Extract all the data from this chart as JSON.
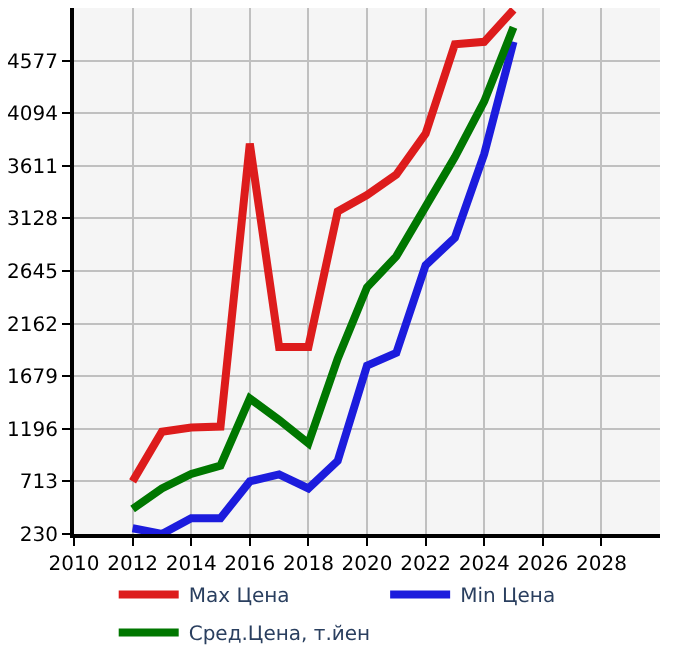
{
  "chart_data": {
    "type": "line",
    "x": [
      2012,
      2013,
      2014,
      2015,
      2016,
      2017,
      2018,
      2019,
      2020,
      2021,
      2022,
      2023,
      2024,
      2025
    ],
    "series": [
      {
        "name": "Max Цена",
        "color": "#dd1c1c",
        "values": [
          713,
          1169,
          1207,
          1217,
          3815,
          1948,
          1948,
          3192,
          3342,
          3530,
          3906,
          4727,
          4749,
          5044
        ]
      },
      {
        "name": "Min Цена",
        "color": "#1c1cdd",
        "values": [
          283,
          230,
          375,
          375,
          713,
          777,
          649,
          901,
          1776,
          1893,
          2698,
          2951,
          3719,
          4749
        ]
      },
      {
        "name": "Сред.Цена, т.йен",
        "color": "#007700",
        "values": [
          460,
          649,
          782,
          858,
          1475,
          1277,
          1062,
          1840,
          2495,
          2779,
          3236,
          3691,
          4202,
          4883
        ]
      }
    ],
    "xlim": [
      2010,
      2030
    ],
    "xticks": [
      2010,
      2012,
      2014,
      2016,
      2018,
      2020,
      2022,
      2024,
      2026,
      2028
    ],
    "ylim": [
      230,
      5060
    ],
    "yticks": [
      230,
      713,
      1196,
      1679,
      2162,
      2645,
      3128,
      3611,
      4094,
      4577
    ],
    "grid": true,
    "legend": "bottom",
    "marker": "none",
    "line_style": "solid"
  }
}
